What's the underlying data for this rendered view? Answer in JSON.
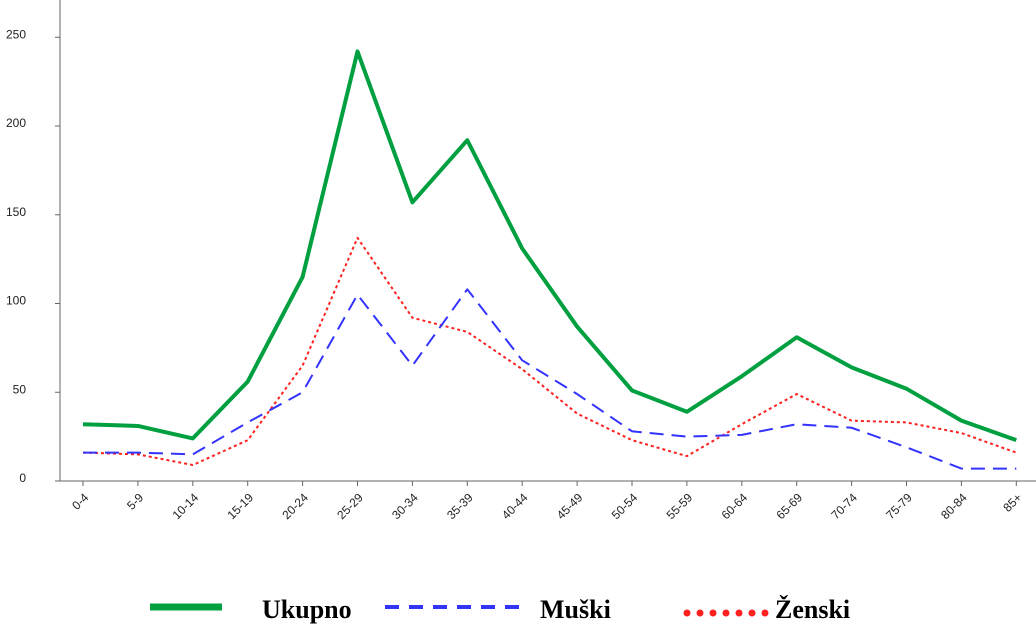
{
  "chart_data": {
    "type": "line",
    "categories": [
      "0-4",
      "5-9",
      "10-14",
      "15-19",
      "20-24",
      "25-29",
      "30-34",
      "35-39",
      "40-44",
      "45-49",
      "50-54",
      "55-59",
      "60-64",
      "65-69",
      "70-74",
      "75-79",
      "80-84",
      "85+"
    ],
    "series": [
      {
        "name": "Ukupno",
        "color": "#00a040",
        "style": "solid",
        "values": [
          32,
          31,
          24,
          56,
          115,
          242,
          157,
          192,
          131,
          87,
          51,
          39,
          59,
          81,
          64,
          52,
          34,
          23
        ]
      },
      {
        "name": "Muški",
        "color": "#3333ff",
        "style": "dashed",
        "values": [
          16,
          16,
          15,
          33,
          50,
          105,
          65,
          108,
          68,
          49,
          28,
          25,
          26,
          32,
          30,
          19,
          7,
          7
        ]
      },
      {
        "name": "Ženski",
        "color": "#ff2020",
        "style": "dotted",
        "values": [
          16,
          15,
          9,
          23,
          65,
          137,
          92,
          84,
          63,
          38,
          23,
          14,
          32,
          49,
          34,
          33,
          27,
          16
        ]
      }
    ],
    "ylim": [
      0,
      271
    ],
    "yticks": [
      0,
      50,
      100,
      150,
      200,
      250
    ],
    "legend": "bottom"
  }
}
